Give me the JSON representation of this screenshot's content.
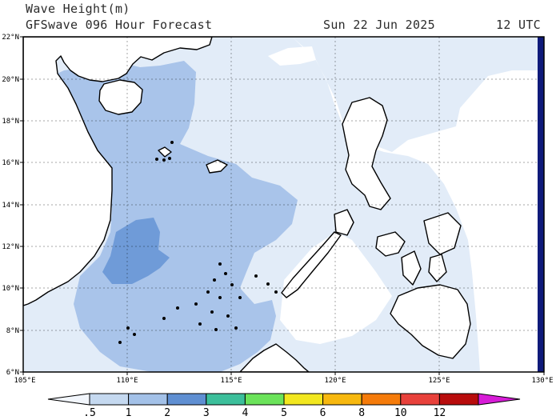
{
  "header": {
    "title": "Wave Height(m)",
    "model": "GFSwave 096 Hour Forecast",
    "date": "Sun 22 Jun 2025",
    "time": "12 UTC"
  },
  "map": {
    "lat_range": [
      6,
      22
    ],
    "lon_range": [
      105,
      130
    ],
    "lat_labels": [
      "22°N",
      "20°N",
      "18°N",
      "16°N",
      "14°N",
      "12°N",
      "10°N",
      "8°N",
      "6°N"
    ],
    "lon_labels": [
      "105°E",
      "110°E",
      "115°E",
      "120°E",
      "125°E",
      "130°E"
    ]
  },
  "legend": {
    "ticks": [
      ".5",
      "1",
      "2",
      "3",
      "4",
      "5",
      "6",
      "8",
      "10",
      "12"
    ],
    "colors": [
      "#f2f6fc",
      "#c5d9f0",
      "#a3c1e8",
      "#5f8fd2",
      "#3cbf9b",
      "#6be35a",
      "#f2e71f",
      "#f7b80f",
      "#f57b0a",
      "#e8413b",
      "#b80c0c",
      "#d71cd7"
    ]
  }
}
